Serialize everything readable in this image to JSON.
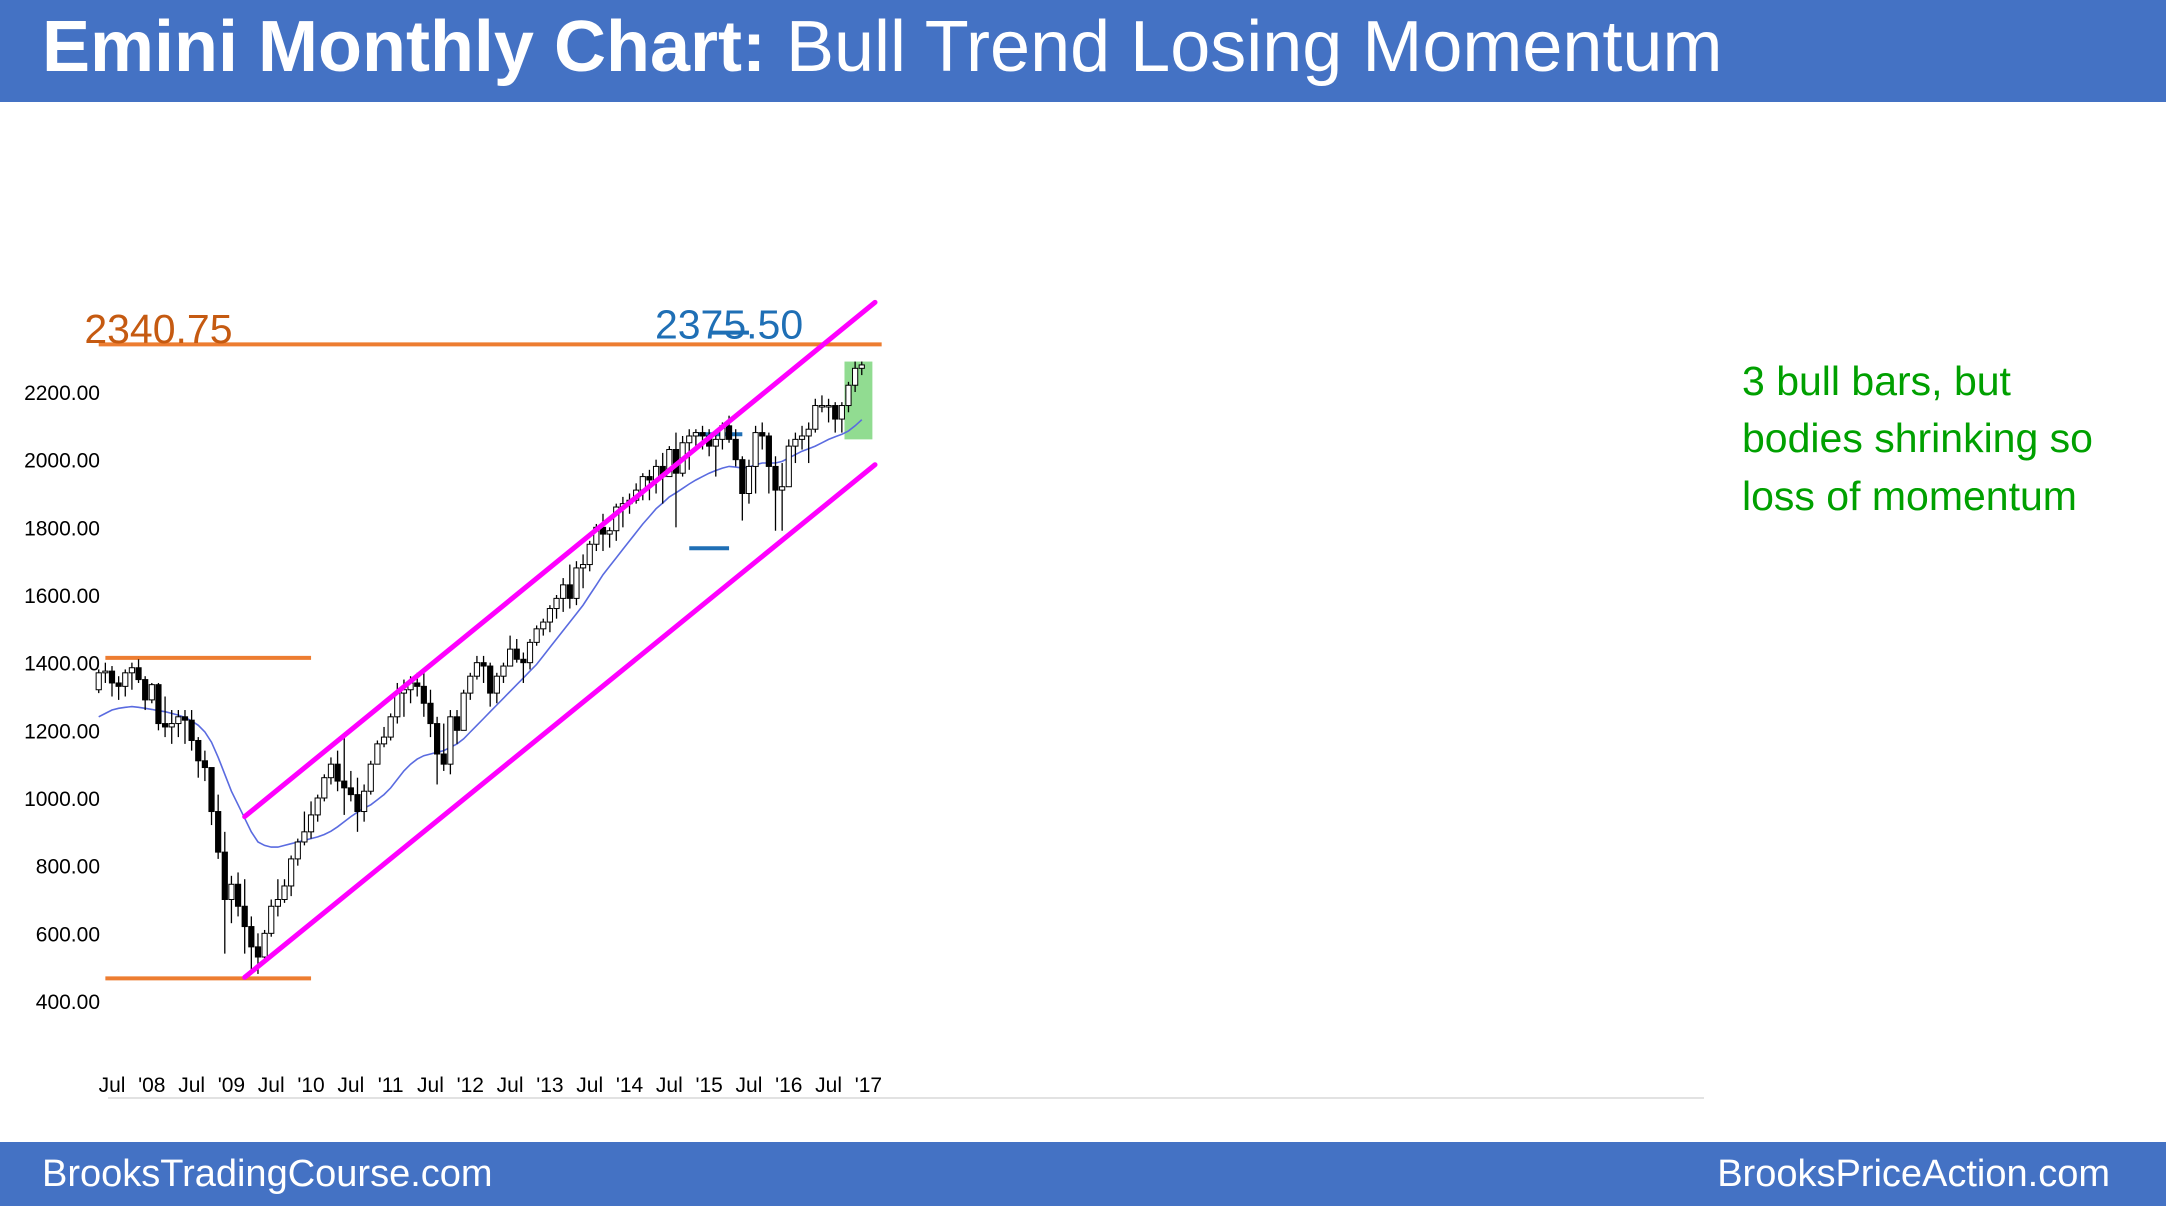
{
  "header": {
    "title_bold": "Emini Monthly Chart:",
    "title_rest": " Bull Trend Losing Momentum"
  },
  "footer": {
    "left": "BrooksTradingCourse.com",
    "right": "BrooksPriceAction.com"
  },
  "colors": {
    "header_bg": "#4472c4",
    "orange": "#ed7d31",
    "label_orange": "#c55a11",
    "blue": "#1f6fb5",
    "magenta": "#ff00ff",
    "green_text": "#00a000",
    "green_box": "#7ed67e",
    "ma_line": "#5a6be0"
  },
  "chart_data": {
    "type": "candlestick",
    "title": "Emini Monthly Chart: Bull Trend Losing Momentum",
    "ylim": [
      330,
      2470
    ],
    "y_ticks": [
      400,
      600,
      800,
      1000,
      1200,
      1400,
      1600,
      1800,
      2000,
      2200
    ],
    "y_tick_labels": [
      "400.00",
      "600.00",
      "800.00",
      "1000.00",
      "1200.00",
      "1400.00",
      "1600.00",
      "1800.00",
      "2000.00",
      "2200.00"
    ],
    "x_range": [
      "2007-05",
      "2017-01"
    ],
    "x_ticks": [
      {
        "date": "2007-07",
        "label": "Jul"
      },
      {
        "date": "2008-01",
        "label": "'08"
      },
      {
        "date": "2008-07",
        "label": "Jul"
      },
      {
        "date": "2009-01",
        "label": "'09"
      },
      {
        "date": "2009-07",
        "label": "Jul"
      },
      {
        "date": "2010-01",
        "label": "'10"
      },
      {
        "date": "2010-07",
        "label": "Jul"
      },
      {
        "date": "2011-01",
        "label": "'11"
      },
      {
        "date": "2011-07",
        "label": "Jul"
      },
      {
        "date": "2012-01",
        "label": "'12"
      },
      {
        "date": "2012-07",
        "label": "Jul"
      },
      {
        "date": "2013-01",
        "label": "'13"
      },
      {
        "date": "2013-07",
        "label": "Jul"
      },
      {
        "date": "2014-01",
        "label": "'14"
      },
      {
        "date": "2014-07",
        "label": "Jul"
      },
      {
        "date": "2015-01",
        "label": "'15"
      },
      {
        "date": "2015-07",
        "label": "Jul"
      },
      {
        "date": "2016-01",
        "label": "'16"
      },
      {
        "date": "2016-07",
        "label": "Jul"
      },
      {
        "date": "2017-01",
        "label": "'17"
      }
    ],
    "candles": {
      "start": "2007-05",
      "ohlc": [
        [
          1320,
          1380,
          1310,
          1370
        ],
        [
          1370,
          1400,
          1340,
          1375
        ],
        [
          1375,
          1390,
          1300,
          1340
        ],
        [
          1340,
          1360,
          1290,
          1330
        ],
        [
          1330,
          1380,
          1300,
          1370
        ],
        [
          1370,
          1400,
          1320,
          1385
        ],
        [
          1385,
          1410,
          1340,
          1350
        ],
        [
          1350,
          1360,
          1260,
          1290
        ],
        [
          1290,
          1340,
          1280,
          1335
        ],
        [
          1335,
          1340,
          1200,
          1220
        ],
        [
          1220,
          1300,
          1180,
          1210
        ],
        [
          1210,
          1260,
          1160,
          1220
        ],
        [
          1220,
          1260,
          1180,
          1240
        ],
        [
          1240,
          1260,
          1160,
          1230
        ],
        [
          1230,
          1260,
          1140,
          1170
        ],
        [
          1170,
          1180,
          1060,
          1110
        ],
        [
          1110,
          1140,
          1050,
          1090
        ],
        [
          1090,
          1090,
          920,
          960
        ],
        [
          960,
          1010,
          820,
          840
        ],
        [
          840,
          900,
          540,
          700
        ],
        [
          700,
          770,
          630,
          745
        ],
        [
          745,
          780,
          650,
          680
        ],
        [
          680,
          760,
          540,
          620
        ],
        [
          620,
          650,
          480,
          560
        ],
        [
          560,
          600,
          480,
          530
        ],
        [
          530,
          610,
          520,
          600
        ],
        [
          600,
          700,
          590,
          680
        ],
        [
          680,
          760,
          650,
          700
        ],
        [
          700,
          760,
          690,
          740
        ],
        [
          740,
          830,
          710,
          820
        ],
        [
          820,
          880,
          800,
          870
        ],
        [
          870,
          960,
          860,
          900
        ],
        [
          900,
          990,
          880,
          950
        ],
        [
          950,
          1010,
          930,
          1000
        ],
        [
          1000,
          1070,
          990,
          1060
        ],
        [
          1060,
          1120,
          1040,
          1100
        ],
        [
          1100,
          1140,
          1020,
          1050
        ],
        [
          1050,
          1180,
          950,
          1030
        ],
        [
          1030,
          1080,
          990,
          1010
        ],
        [
          1010,
          1060,
          900,
          960
        ],
        [
          960,
          1040,
          930,
          1020
        ],
        [
          1020,
          1110,
          1010,
          1100
        ],
        [
          1100,
          1170,
          1100,
          1160
        ],
        [
          1160,
          1210,
          1150,
          1180
        ],
        [
          1180,
          1250,
          1170,
          1240
        ],
        [
          1240,
          1340,
          1220,
          1310
        ],
        [
          1310,
          1350,
          1240,
          1320
        ],
        [
          1320,
          1360,
          1280,
          1340
        ],
        [
          1340,
          1370,
          1300,
          1330
        ],
        [
          1330,
          1370,
          1240,
          1280
        ],
        [
          1280,
          1320,
          1180,
          1220
        ],
        [
          1220,
          1240,
          1040,
          1130
        ],
        [
          1130,
          1220,
          1080,
          1100
        ],
        [
          1100,
          1260,
          1070,
          1240
        ],
        [
          1240,
          1260,
          1160,
          1200
        ],
        [
          1200,
          1320,
          1200,
          1310
        ],
        [
          1310,
          1370,
          1290,
          1360
        ],
        [
          1360,
          1420,
          1350,
          1400
        ],
        [
          1400,
          1420,
          1340,
          1390
        ],
        [
          1390,
          1400,
          1270,
          1310
        ],
        [
          1310,
          1370,
          1280,
          1360
        ],
        [
          1360,
          1400,
          1340,
          1390
        ],
        [
          1390,
          1480,
          1390,
          1440
        ],
        [
          1440,
          1470,
          1400,
          1410
        ],
        [
          1410,
          1430,
          1340,
          1400
        ],
        [
          1400,
          1470,
          1380,
          1460
        ],
        [
          1460,
          1510,
          1450,
          1500
        ],
        [
          1500,
          1530,
          1480,
          1520
        ],
        [
          1520,
          1570,
          1490,
          1560
        ],
        [
          1560,
          1600,
          1530,
          1590
        ],
        [
          1590,
          1650,
          1550,
          1630
        ],
        [
          1630,
          1690,
          1560,
          1590
        ],
        [
          1590,
          1700,
          1570,
          1680
        ],
        [
          1680,
          1720,
          1620,
          1690
        ],
        [
          1690,
          1760,
          1670,
          1750
        ],
        [
          1750,
          1810,
          1730,
          1800
        ],
        [
          1800,
          1840,
          1730,
          1780
        ],
        [
          1780,
          1800,
          1740,
          1790
        ],
        [
          1790,
          1870,
          1760,
          1860
        ],
        [
          1860,
          1890,
          1800,
          1870
        ],
        [
          1870,
          1900,
          1840,
          1880
        ],
        [
          1880,
          1930,
          1870,
          1910
        ],
        [
          1910,
          1960,
          1880,
          1950
        ],
        [
          1950,
          1970,
          1880,
          1940
        ],
        [
          1940,
          2000,
          1900,
          1980
        ],
        [
          1980,
          2020,
          1870,
          1950
        ],
        [
          1950,
          2040,
          1950,
          2030
        ],
        [
          2030,
          2080,
          1800,
          1960
        ],
        [
          1960,
          2070,
          1950,
          2050
        ],
        [
          2050,
          2090,
          1970,
          2070
        ],
        [
          2070,
          2090,
          2040,
          2080
        ],
        [
          2080,
          2100,
          2030,
          2070
        ],
        [
          2070,
          2090,
          2010,
          2040
        ],
        [
          2040,
          2080,
          1950,
          2060
        ],
        [
          2060,
          2110,
          2030,
          2100
        ],
        [
          2100,
          2130,
          2050,
          2060
        ],
        [
          2060,
          2090,
          1980,
          2000
        ],
        [
          2000,
          2010,
          1820,
          1900
        ],
        [
          1900,
          2000,
          1870,
          1980
        ],
        [
          1980,
          2100,
          1900,
          2080
        ],
        [
          2080,
          2110,
          2030,
          2070
        ],
        [
          2070,
          2080,
          1900,
          1980
        ],
        [
          1980,
          2010,
          1790,
          1910
        ],
        [
          1910,
          1990,
          1790,
          1920
        ],
        [
          1920,
          2060,
          1920,
          2040
        ],
        [
          2040,
          2080,
          1990,
          2060
        ],
        [
          2060,
          2100,
          2030,
          2070
        ],
        [
          2070,
          2110,
          1990,
          2090
        ],
        [
          2090,
          2180,
          2080,
          2160
        ],
        [
          2160,
          2190,
          2140,
          2160
        ],
        [
          2160,
          2180,
          2110,
          2160
        ],
        [
          2160,
          2170,
          2080,
          2120
        ],
        [
          2120,
          2170,
          2080,
          2160
        ],
        [
          2160,
          2230,
          2140,
          2220
        ],
        [
          2220,
          2290,
          2200,
          2270
        ],
        [
          2270,
          2290,
          2250,
          2280
        ]
      ]
    },
    "moving_average": {
      "start": "2007-05",
      "values": [
        1240,
        1250,
        1260,
        1265,
        1268,
        1270,
        1268,
        1265,
        1262,
        1258,
        1255,
        1250,
        1245,
        1238,
        1228,
        1215,
        1195,
        1165,
        1120,
        1070,
        1020,
        980,
        940,
        900,
        870,
        860,
        855,
        855,
        860,
        865,
        870,
        875,
        880,
        885,
        892,
        902,
        915,
        930,
        945,
        958,
        970,
        980,
        995,
        1010,
        1030,
        1055,
        1080,
        1100,
        1115,
        1125,
        1130,
        1135,
        1140,
        1150,
        1160,
        1175,
        1195,
        1215,
        1235,
        1255,
        1275,
        1295,
        1315,
        1335,
        1355,
        1375,
        1395,
        1420,
        1445,
        1470,
        1495,
        1520,
        1545,
        1570,
        1600,
        1630,
        1660,
        1685,
        1710,
        1735,
        1760,
        1785,
        1810,
        1832,
        1855,
        1872,
        1890,
        1902,
        1915,
        1928,
        1940,
        1950,
        1960,
        1968,
        1975,
        1980,
        1978,
        1975,
        1978,
        1985,
        1990,
        1990,
        1990,
        1995,
        2005,
        2015,
        2025,
        2032,
        2040,
        2050,
        2060,
        2068,
        2075,
        2085,
        2100,
        2118
      ]
    },
    "horizontal_lines": [
      {
        "value": 2340.75,
        "from": "2007-05",
        "to": "2017-03",
        "color": "orange"
      },
      {
        "value": 1414,
        "from": "2007-06",
        "to": "2010-01",
        "color": "orange"
      },
      {
        "value": 467,
        "from": "2007-06",
        "to": "2010-01",
        "color": "orange"
      },
      {
        "value": 2075,
        "from": "2014-11",
        "to": "2015-06",
        "color": "blue"
      },
      {
        "value": 1738,
        "from": "2014-10",
        "to": "2015-04",
        "color": "blue"
      },
      {
        "value": 2375.5,
        "from": "2015-01",
        "to": "2015-07",
        "color": "blue"
      }
    ],
    "channel_lines": [
      {
        "from": [
          "2009-03",
          945
        ],
        "to": [
          "2017-02",
          2465
        ],
        "color": "magenta"
      },
      {
        "from": [
          "2009-03",
          470
        ],
        "to": [
          "2017-02",
          1985
        ],
        "color": "magenta"
      }
    ],
    "annotations": [
      {
        "text": "2340.75",
        "color": "label_orange",
        "anchor": [
          "2008-02",
          2392
        ]
      },
      {
        "text": "2375.50",
        "color": "blue",
        "anchor": [
          "2015-04",
          2405
        ]
      },
      {
        "text": "3 bull bars, but",
        "color": "green_text"
      },
      {
        "text": "bodies shrinking so",
        "color": "green_text"
      },
      {
        "text": "loss of momentum",
        "color": "green_text"
      }
    ],
    "highlight": {
      "from": "2016-10",
      "to": "2017-01",
      "y_from": 2060,
      "y_to": 2290
    }
  }
}
